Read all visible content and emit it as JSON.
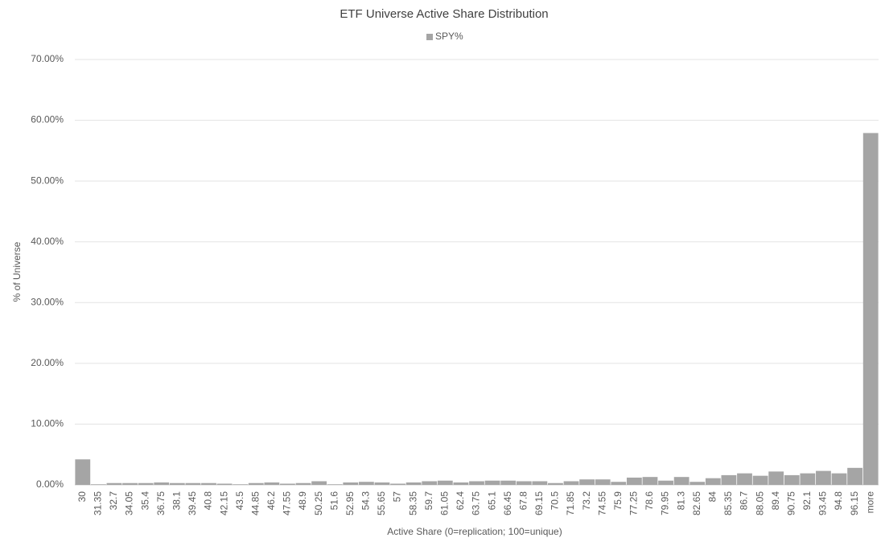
{
  "chart_data": {
    "type": "bar",
    "title": "ETF Universe Active Share Distribution",
    "x_label": "Active Share (0=replication; 100=unique)",
    "y_label": "% of Universe",
    "categories": [
      "30",
      "31.35",
      "32.7",
      "34.05",
      "35.4",
      "36.75",
      "38.1",
      "39.45",
      "40.8",
      "42.15",
      "43.5",
      "44.85",
      "46.2",
      "47.55",
      "48.9",
      "50.25",
      "51.6",
      "52.95",
      "54.3",
      "55.65",
      "57",
      "58.35",
      "59.7",
      "61.05",
      "62.4",
      "63.75",
      "65.1",
      "66.45",
      "67.8",
      "69.15",
      "70.5",
      "71.85",
      "73.2",
      "74.55",
      "75.9",
      "77.25",
      "78.6",
      "79.95",
      "81.3",
      "82.65",
      "84",
      "85.35",
      "86.7",
      "88.05",
      "89.4",
      "90.75",
      "92.1",
      "93.45",
      "94.8",
      "96.15",
      "more"
    ],
    "series": [
      {
        "name": "SPY%",
        "color": "#a5a5a5",
        "values": [
          4.2,
          0.1,
          0.3,
          0.3,
          0.3,
          0.4,
          0.3,
          0.3,
          0.3,
          0.2,
          0.1,
          0.3,
          0.4,
          0.2,
          0.3,
          0.6,
          0.1,
          0.4,
          0.5,
          0.4,
          0.2,
          0.4,
          0.6,
          0.7,
          0.4,
          0.6,
          0.7,
          0.7,
          0.6,
          0.6,
          0.3,
          0.6,
          0.9,
          0.9,
          0.5,
          1.2,
          1.3,
          0.7,
          1.3,
          0.5,
          1.1,
          1.6,
          1.9,
          1.5,
          2.2,
          1.6,
          1.9,
          2.3,
          1.9,
          2.8,
          57.9
        ]
      }
    ],
    "ylim": [
      0,
      70
    ],
    "yticks": [
      {
        "value": 0,
        "label": "0.00%"
      },
      {
        "value": 10,
        "label": "10.00%"
      },
      {
        "value": 20,
        "label": "20.00%"
      },
      {
        "value": 30,
        "label": "30.00%"
      },
      {
        "value": 40,
        "label": "40.00%"
      },
      {
        "value": 50,
        "label": "50.00%"
      },
      {
        "value": 60,
        "label": "60.00%"
      },
      {
        "value": 70,
        "label": "70.00%"
      }
    ],
    "grid": true,
    "legend": "top"
  }
}
